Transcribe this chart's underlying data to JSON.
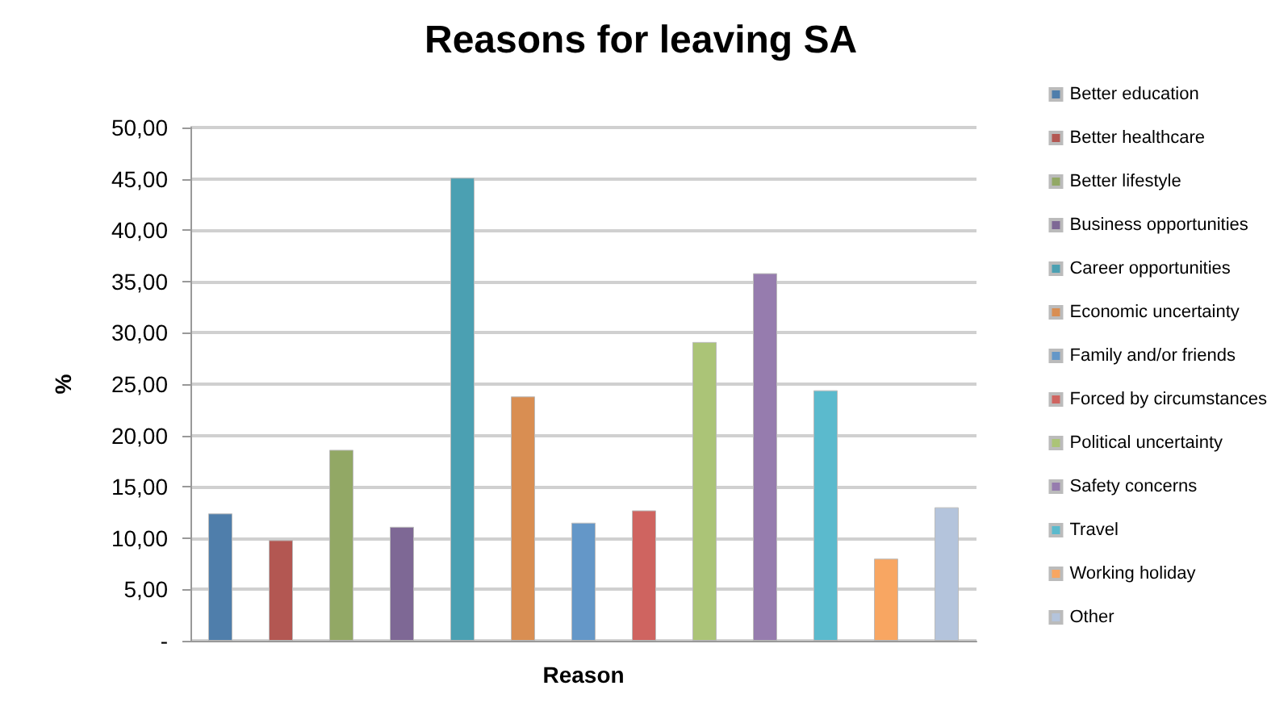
{
  "chart_data": {
    "type": "bar",
    "title": "Reasons for leaving SA",
    "xlabel": "Reason",
    "ylabel": "%",
    "categories": [
      null
    ],
    "series": [
      {
        "name": "Better education",
        "color": "#4f7eab",
        "values": [
          12.4
        ]
      },
      {
        "name": "Better healthcare",
        "color": "#b35752",
        "values": [
          9.8
        ]
      },
      {
        "name": "Better lifestyle",
        "color": "#92a865",
        "values": [
          18.6
        ]
      },
      {
        "name": "Business opportunities",
        "color": "#7e6895",
        "values": [
          11.1
        ]
      },
      {
        "name": "Career opportunities",
        "color": "#4ba0b2",
        "values": [
          45.1
        ]
      },
      {
        "name": "Economic uncertainty",
        "color": "#d98e52",
        "values": [
          23.8
        ]
      },
      {
        "name": "Family and/or friends",
        "color": "#6497c8",
        "values": [
          11.5
        ]
      },
      {
        "name": "Forced by circumstances",
        "color": "#cf6460",
        "values": [
          12.7
        ]
      },
      {
        "name": "Political uncertainty",
        "color": "#abc477",
        "values": [
          29.1
        ]
      },
      {
        "name": "Safety concerns",
        "color": "#967cae",
        "values": [
          35.8
        ]
      },
      {
        "name": "Travel",
        "color": "#5bbacd",
        "values": [
          24.4
        ]
      },
      {
        "name": "Working holiday",
        "color": "#f8a662",
        "values": [
          8.0
        ]
      },
      {
        "name": "Other",
        "color": "#b4c4dc",
        "values": [
          13.0
        ]
      }
    ],
    "ylim": [
      0,
      50
    ],
    "yticks": [
      {
        "value": 0,
        "label": "-"
      },
      {
        "value": 5,
        "label": "5,00"
      },
      {
        "value": 10,
        "label": "10,00"
      },
      {
        "value": 15,
        "label": "15,00"
      },
      {
        "value": 20,
        "label": "20,00"
      },
      {
        "value": 25,
        "label": "25,00"
      },
      {
        "value": 30,
        "label": "30,00"
      },
      {
        "value": 35,
        "label": "35,00"
      },
      {
        "value": 40,
        "label": "40,00"
      },
      {
        "value": 45,
        "label": "45,00"
      },
      {
        "value": 50,
        "label": "50,00"
      }
    ],
    "grid": "y",
    "legend": "right"
  }
}
